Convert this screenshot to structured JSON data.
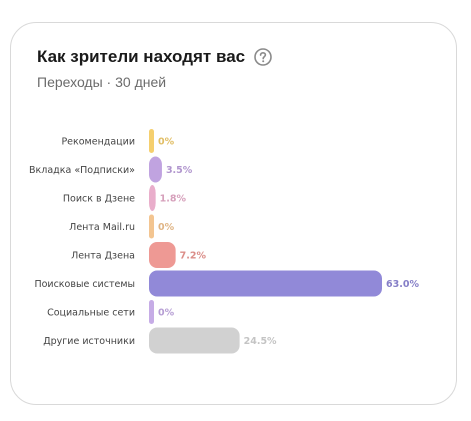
{
  "card": {
    "title": "Как зрители находят вас",
    "subtitle": "Переходы · 30 дней",
    "help_icon": "question-circle-icon"
  },
  "chart_data": {
    "type": "bar",
    "orientation": "horizontal",
    "title": "Как зрители находят вас",
    "subtitle": "Переходы · 30 дней",
    "xlabel": "",
    "ylabel": "",
    "unit": "%",
    "grid": false,
    "categories": [
      "Рекомендации",
      "Вкладка «Подписки»",
      "Поиск в Дзене",
      "Лента Mail.ru",
      "Лента Дзена",
      "Поисковые системы",
      "Социальные сети",
      "Другие источники"
    ],
    "values": [
      0,
      3.5,
      1.8,
      0,
      7.2,
      63.0,
      0,
      24.5
    ],
    "value_labels": [
      "0%",
      "3.5%",
      "1.8%",
      "0%",
      "7.2%",
      "63.0%",
      "0%",
      "24.5%"
    ],
    "colors": [
      "#f5cf6e",
      "#c0a3e0",
      "#e9aecb",
      "#f3c591",
      "#ee9994",
      "#9189d8",
      "#c6ace6",
      "#d1d1d1"
    ],
    "xlim": [
      0,
      63.0
    ]
  }
}
